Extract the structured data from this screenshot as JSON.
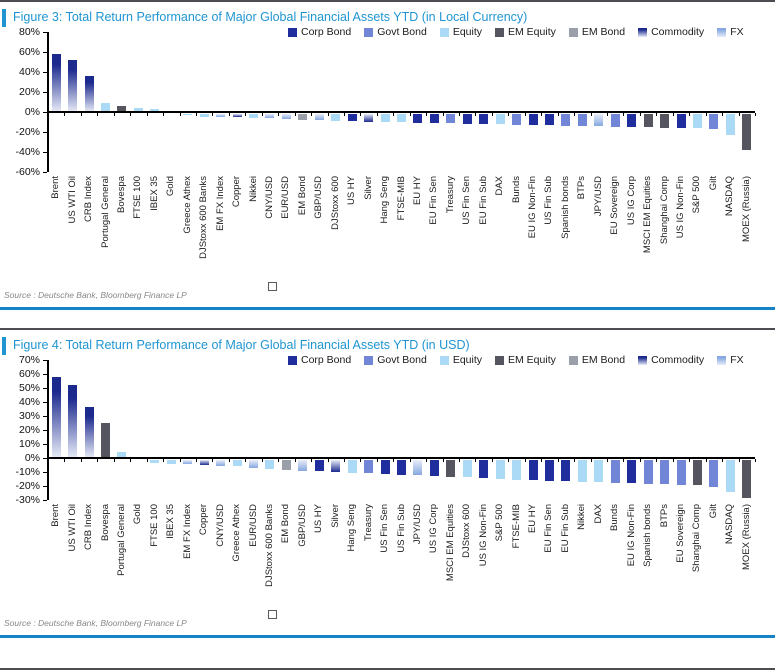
{
  "colors": {
    "Corp Bond": "#1f2e9c",
    "Govt Bond": "#7186d6",
    "Equity": "#aadaf6",
    "EM Equity": "#54555e",
    "EM Bond": "#9aa0a9",
    "Commodity": "#1c2a8e",
    "FX": "#86a8e0",
    "gradient_light": "#e8ecf8",
    "axis": "#000000",
    "title_blue": "#2095d2",
    "rule_blue": "#1583c5",
    "rule_dark": "#4c4d50",
    "source_gray": "#85878a"
  },
  "figures": [
    {
      "title": "Figure 3: Total Return Performance of Major Global Financial Assets YTD (in Local Currency)",
      "source": "Source : Deutsche Bank, Bloomberg Finance LP"
    },
    {
      "title": "Figure 4: Total Return Performance of Major Global Financial Assets YTD (in USD)",
      "source": "Source : Deutsche Bank, Bloomberg Finance LP"
    }
  ],
  "chart_data": [
    {
      "type": "bar",
      "title": "Figure 3: Total Return Performance of Major Global Financial Assets YTD (in Local Currency)",
      "xlabel": "",
      "ylabel": "",
      "ylim": [
        -60,
        80
      ],
      "ytick_step": 20,
      "ytick_suffix": "%",
      "grid": false,
      "legend_position": "top",
      "legend": [
        "Corp Bond",
        "Govt Bond",
        "Equity",
        "EM Equity",
        "EM Bond",
        "Commodity",
        "FX"
      ],
      "categories": [
        "Brent",
        "US WTI Oil",
        "CRB Index",
        "Portugal General",
        "Bovespa",
        "FTSE 100",
        "IBEX 35",
        "Gold",
        "Greece Athex",
        "DJStoxx 600 Banks",
        "EM FX Index",
        "Copper",
        "Nikkei",
        "CNY/USD",
        "EUR/USD",
        "EM Bond",
        "GBP/USD",
        "DJStoxx 600",
        "US HY",
        "Silver",
        "Hang Seng",
        "FTSE-MIB",
        "EU HY",
        "EU Fin Sen",
        "Treasury",
        "US Fin Sen",
        "EU Fin Sub",
        "DAX",
        "Bunds",
        "EU IG Non-Fin",
        "US Fin Sub",
        "Spanish bonds",
        "BTPs",
        "JPY/USD",
        "EU Sovereign",
        "US IG Corp",
        "MSCI EM Equities",
        "Shanghai Comp",
        "US IG Non-Fin",
        "S&P 500",
        "Gilt",
        "NASDAQ",
        "MOEX (Russia)"
      ],
      "values": [
        58.5,
        52.5,
        36.5,
        9.5,
        6.5,
        4.5,
        3.5,
        1.0,
        -0.5,
        -2.5,
        -3.0,
        -3.3,
        -3.6,
        -4.2,
        -5.0,
        -5.5,
        -6.2,
        -6.6,
        -7.2,
        -7.5,
        -7.8,
        -8.4,
        -8.8,
        -9.1,
        -9.4,
        -9.7,
        -10.0,
        -10.3,
        -10.6,
        -11.0,
        -11.3,
        -11.6,
        -12.0,
        -12.3,
        -12.6,
        -13.0,
        -13.3,
        -13.6,
        -14.0,
        -14.3,
        -15.0,
        -21.0,
        -36.0
      ],
      "asset_class": [
        "Commodity",
        "Commodity",
        "Commodity",
        "Equity",
        "EM Equity",
        "Equity",
        "Equity",
        "Commodity",
        "Equity",
        "Equity",
        "FX",
        "Commodity",
        "Equity",
        "FX",
        "FX",
        "EM Bond",
        "FX",
        "Equity",
        "Corp Bond",
        "Commodity",
        "Equity",
        "Equity",
        "Corp Bond",
        "Corp Bond",
        "Govt Bond",
        "Corp Bond",
        "Corp Bond",
        "Equity",
        "Govt Bond",
        "Corp Bond",
        "Corp Bond",
        "Govt Bond",
        "Govt Bond",
        "FX",
        "Govt Bond",
        "Corp Bond",
        "EM Equity",
        "EM Equity",
        "Corp Bond",
        "Equity",
        "Govt Bond",
        "Equity",
        "EM Equity"
      ]
    },
    {
      "type": "bar",
      "title": "Figure 4: Total Return Performance of Major Global Financial Assets YTD (in USD)",
      "xlabel": "",
      "ylabel": "",
      "ylim": [
        -30,
        70
      ],
      "ytick_step": 10,
      "ytick_suffix": "%",
      "grid": false,
      "legend_position": "top",
      "legend": [
        "Corp Bond",
        "Govt Bond",
        "Equity",
        "EM Equity",
        "EM Bond",
        "Commodity",
        "FX"
      ],
      "categories": [
        "Brent",
        "US WTI Oil",
        "CRB Index",
        "Bovespa",
        "Portugal General",
        "Gold",
        "FTSE 100",
        "IBEX 35",
        "EM FX Index",
        "Copper",
        "CNY/USD",
        "Greece Athex",
        "EUR/USD",
        "DJStoxx 600 Banks",
        "EM Bond",
        "GBP/USD",
        "US HY",
        "Silver",
        "Hang Seng",
        "Treasury",
        "US Fin Sen",
        "US Fin Sub",
        "JPY/USD",
        "US IG Corp",
        "MSCI EM Equities",
        "DJStoxx 600",
        "US IG Non-Fin",
        "S&P 500",
        "FTSE-MIB",
        "EU HY",
        "EU Fin Sen",
        "EU Fin Sub",
        "Nikkei",
        "DAX",
        "Bunds",
        "EU IG Non-Fin",
        "Spanish bonds",
        "BTPs",
        "EU Sovereign",
        "Shanghai Comp",
        "Gilt",
        "NASDAQ",
        "MOEX (Russia)"
      ],
      "values": [
        58.0,
        52.5,
        36.5,
        25.0,
        4.0,
        0.5,
        -2.0,
        -2.6,
        -3.0,
        -3.5,
        -4.0,
        -4.6,
        -5.5,
        -6.4,
        -7.0,
        -7.5,
        -8.0,
        -8.5,
        -9.0,
        -9.4,
        -10.0,
        -10.4,
        -11.0,
        -11.4,
        -11.8,
        -12.4,
        -13.0,
        -13.4,
        -14.0,
        -14.4,
        -15.0,
        -15.3,
        -15.6,
        -16.0,
        -16.3,
        -16.6,
        -17.0,
        -17.3,
        -17.6,
        -18.0,
        -19.0,
        -22.5,
        -27.0
      ],
      "asset_class": [
        "Commodity",
        "Commodity",
        "Commodity",
        "EM Equity",
        "Equity",
        "Commodity",
        "Equity",
        "Equity",
        "FX",
        "Commodity",
        "FX",
        "Equity",
        "FX",
        "Equity",
        "EM Bond",
        "FX",
        "Corp Bond",
        "Commodity",
        "Equity",
        "Govt Bond",
        "Corp Bond",
        "Corp Bond",
        "FX",
        "Corp Bond",
        "EM Equity",
        "Equity",
        "Corp Bond",
        "Equity",
        "Equity",
        "Corp Bond",
        "Corp Bond",
        "Corp Bond",
        "Equity",
        "Equity",
        "Govt Bond",
        "Corp Bond",
        "Govt Bond",
        "Govt Bond",
        "Govt Bond",
        "EM Equity",
        "Govt Bond",
        "Equity",
        "EM Equity"
      ]
    }
  ]
}
